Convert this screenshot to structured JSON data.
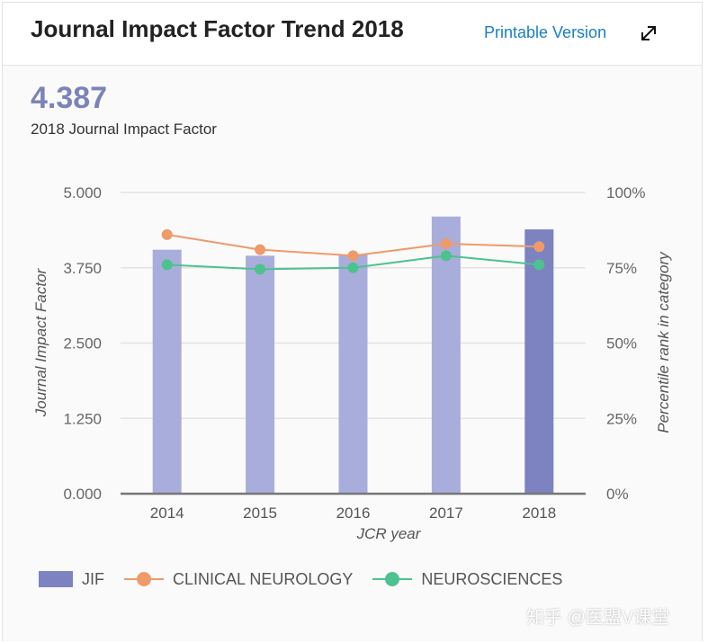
{
  "header": {
    "title": "Journal Impact Factor Trend 2018",
    "printable_label": "Printable Version",
    "expand_icon": "expand-arrows-icon"
  },
  "summary": {
    "value": "4.387",
    "caption": "2018 Journal Impact Factor"
  },
  "colors": {
    "bar": "#a9addb",
    "bar_highlight": "#7c83c0",
    "clinical": "#ee9a6a",
    "neuro": "#4cc28e",
    "grid": "#e3e3e3",
    "axis": "#777777"
  },
  "chart_data": {
    "type": "bar",
    "title": "",
    "xlabel": "JCR year",
    "ylabel": "Journal Impact Factor",
    "y2label": "Percentile rank in category",
    "categories": [
      "2014",
      "2015",
      "2016",
      "2017",
      "2018"
    ],
    "ylim": [
      0,
      5
    ],
    "y_ticks": [
      "5.000",
      "3.750",
      "2.500",
      "1.250",
      "0.000"
    ],
    "y2lim": [
      0,
      100
    ],
    "y2_ticks": [
      "100%",
      "75%",
      "50%",
      "25%",
      "0%"
    ],
    "grid": true,
    "legend_position": "bottom-left",
    "series": [
      {
        "name": "JIF",
        "type": "bar",
        "axis": "left",
        "values": [
          4.05,
          3.95,
          3.97,
          4.6,
          4.387
        ]
      },
      {
        "name": "CLINICAL NEUROLOGY",
        "type": "line",
        "axis": "right",
        "values": [
          86,
          81,
          79,
          83,
          82
        ]
      },
      {
        "name": "NEUROSCIENCES",
        "type": "line",
        "axis": "right",
        "values": [
          76,
          74.5,
          75,
          79,
          76
        ]
      }
    ]
  },
  "watermark": "知乎 @医盟V课堂"
}
